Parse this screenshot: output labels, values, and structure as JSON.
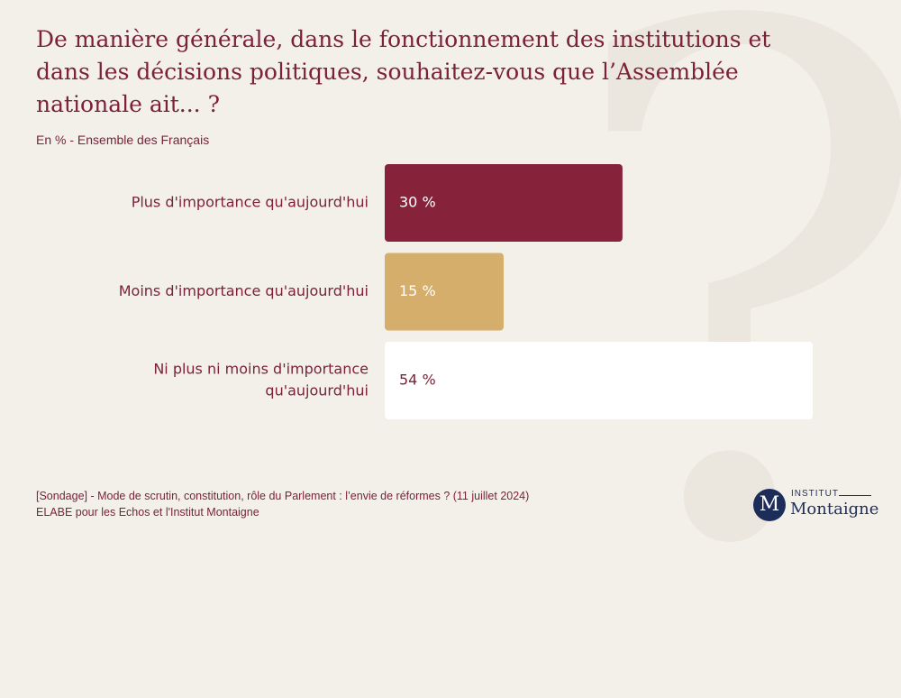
{
  "chart_data": {
    "type": "bar",
    "orientation": "horizontal",
    "title": "De manière générale, dans le fonctionnement des institutions et dans les décisions politiques, souhaitez-vous que l’Assemblée nationale ait... ?",
    "subtitle": "En % - Ensemble des Français",
    "categories": [
      "Plus d'importance qu'aujourd'hui",
      "Moins d'importance qu'aujourd'hui",
      "Ni plus ni moins d'importance qu'aujourd'hui"
    ],
    "category_lines": [
      [
        "Plus d'importance qu'aujourd'hui"
      ],
      [
        "Moins d'importance qu'aujourd'hui"
      ],
      [
        "Ni plus ni moins d'importance",
        "qu'aujourd'hui"
      ]
    ],
    "values": [
      30,
      15,
      54
    ],
    "value_labels": [
      "30 %",
      "15 %",
      "54 %"
    ],
    "bar_colors": [
      "#862239",
      "#d4ae6a",
      "#ffffff"
    ],
    "value_label_colors": [
      "#ffffff",
      "#ffffff",
      "#7d2138"
    ],
    "xlim": [
      0,
      54
    ],
    "grid": false,
    "legend": "none"
  },
  "source": {
    "line1": "[Sondage] - Mode de scrutin, constitution, rôle du Parlement : l’envie de réformes ? (11 juillet 2024)",
    "line2": "ELABE pour les Echos et l'Institut Montaigne"
  },
  "logo": {
    "mark": "M",
    "top": "INSTITUT",
    "name": "Montaigne"
  },
  "colors": {
    "background": "#f3f0ea",
    "text": "#7d2138",
    "logo": "#1d2d5a"
  }
}
